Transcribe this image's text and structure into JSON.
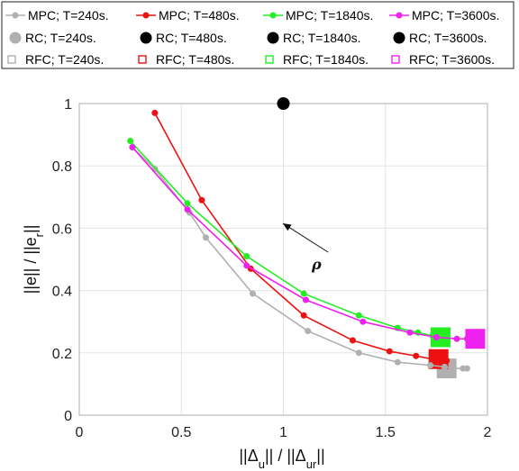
{
  "chart_data": {
    "type": "scatter",
    "xlim": [
      0,
      2
    ],
    "ylim": [
      0,
      1
    ],
    "xticks": [
      "0",
      "0.5",
      "1",
      "1.5",
      "2"
    ],
    "yticks": [
      "0",
      "0.2",
      "0.4",
      "0.6",
      "0.8",
      "1"
    ],
    "xlabel": {
      "pre": "||Δ",
      "sub1": "u",
      "mid": "|| / ||Δ",
      "sub2": "ur",
      "post": "||"
    },
    "ylabel": {
      "pre": "||e|| / ||e",
      "sub": "r",
      "post": "||"
    },
    "grid": true,
    "legend_position": "top",
    "annotation": "ρ",
    "annotation_arrow": {
      "from": [
        1.1,
        0.615
      ],
      "to": [
        0.9,
        0.615
      ]
    },
    "colors": {
      "T240": "#b0b0b0",
      "T480": "#ee1111",
      "T1840": "#22ee22",
      "T3600": "#ee22ee",
      "RC": "#000000"
    },
    "series": [
      {
        "name": "MPC; T=240s.",
        "kind": "mpc",
        "color": "#b0b0b0",
        "points": [
          [
            0.26,
            0.86
          ],
          [
            0.37,
            0.79
          ],
          [
            0.54,
            0.65
          ],
          [
            0.62,
            0.57
          ],
          [
            0.85,
            0.39
          ],
          [
            1.12,
            0.27
          ],
          [
            1.37,
            0.2
          ],
          [
            1.56,
            0.17
          ],
          [
            1.72,
            0.16
          ],
          [
            1.79,
            0.155
          ],
          [
            1.83,
            0.15
          ],
          [
            1.88,
            0.15
          ],
          [
            1.9,
            0.15
          ]
        ]
      },
      {
        "name": "MPC; T=480s.",
        "kind": "mpc",
        "color": "#ee1111",
        "points": [
          [
            0.37,
            0.97
          ],
          [
            0.6,
            0.69
          ],
          [
            0.84,
            0.47
          ],
          [
            1.1,
            0.32
          ],
          [
            1.34,
            0.24
          ],
          [
            1.52,
            0.205
          ],
          [
            1.65,
            0.19
          ],
          [
            1.73,
            0.18
          ],
          [
            1.77,
            0.18
          ],
          [
            1.8,
            0.175
          ]
        ]
      },
      {
        "name": "MPC; T=1840s.",
        "kind": "mpc",
        "color": "#22ee22",
        "points": [
          [
            0.25,
            0.88
          ],
          [
            0.53,
            0.68
          ],
          [
            0.82,
            0.51
          ],
          [
            1.1,
            0.39
          ],
          [
            1.37,
            0.32
          ],
          [
            1.56,
            0.28
          ],
          [
            1.66,
            0.265
          ],
          [
            1.73,
            0.255
          ],
          [
            1.78,
            0.25
          ]
        ]
      },
      {
        "name": "MPC; T=3600s.",
        "kind": "mpc",
        "color": "#ee22ee",
        "points": [
          [
            0.26,
            0.86
          ],
          [
            0.53,
            0.66
          ],
          [
            0.82,
            0.48
          ],
          [
            1.11,
            0.37
          ],
          [
            1.39,
            0.3
          ],
          [
            1.62,
            0.265
          ],
          [
            1.75,
            0.25
          ],
          [
            1.85,
            0.245
          ],
          [
            1.9,
            0.245
          ]
        ]
      },
      {
        "name": "RC; T=240s.",
        "kind": "rc",
        "color": "#b0b0b0",
        "points": []
      },
      {
        "name": "RC; T=480s.",
        "kind": "rc",
        "color": "#000000",
        "points": []
      },
      {
        "name": "RC; T=1840s.",
        "kind": "rc",
        "color": "#000000",
        "points": []
      },
      {
        "name": "RC; T=3600s.",
        "kind": "rc",
        "color": "#000000",
        "points": [
          [
            1.0,
            1.0
          ]
        ]
      },
      {
        "name": "RFC; T=240s.",
        "kind": "rfc",
        "color": "#b0b0b0",
        "points": [
          [
            1.8,
            0.15
          ]
        ]
      },
      {
        "name": "RFC; T=480s.",
        "kind": "rfc",
        "color": "#ee1111",
        "points": [
          [
            1.76,
            0.18
          ]
        ]
      },
      {
        "name": "RFC; T=1840s.",
        "kind": "rfc",
        "color": "#22ee22",
        "points": [
          [
            1.77,
            0.25
          ]
        ]
      },
      {
        "name": "RFC; T=3600s.",
        "kind": "rfc",
        "color": "#ee22ee",
        "points": [
          [
            1.94,
            0.245
          ]
        ]
      }
    ]
  }
}
